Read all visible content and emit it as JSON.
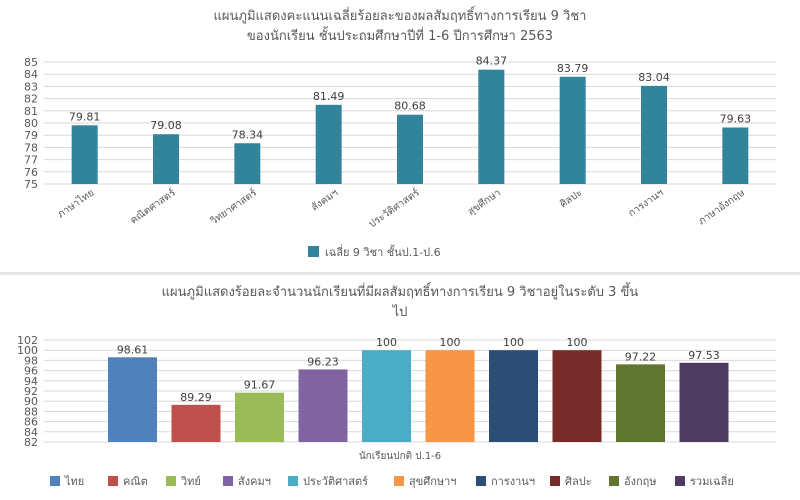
{
  "chart_data": [
    {
      "type": "bar",
      "title_line1": "แผนภูมิแสดงคะแนนเฉลี่ยร้อยละของผลสัมฤทธิ์ทางการเรียน 9 วิชา",
      "title_line2": "ของนักเรียน ชั้นประถมศึกษาปีที่ 1-6 ปีการศึกษา 2563",
      "categories": [
        "ภาษาไทย",
        "คณิตศาสตร์",
        "วิทยาศาสตร์",
        "สังคมฯ",
        "ประวัติศาสตร์",
        "สุขศึกษา",
        "ศิลปะ",
        "การงานฯ",
        "ภาษาอังกฤษ"
      ],
      "values": [
        79.81,
        79.08,
        78.34,
        81.49,
        80.68,
        84.37,
        83.79,
        83.04,
        79.63
      ],
      "series_name": "เฉลี่ย 9 วิชา ชั้นป.1-ป.6",
      "color": "#31849b",
      "ylim": [
        75,
        85
      ],
      "yticks": [
        75,
        76,
        77,
        78,
        79,
        80,
        81,
        82,
        83,
        84,
        85
      ],
      "grid": true,
      "legend": "bottom"
    },
    {
      "type": "bar",
      "title_line1": "แผนภูมิแสดงร้อยละจำนวนนักเรียนที่มีผลสัมฤทธิ์ทางการเรียน 9 วิชาอยู่ในระดับ 3 ขึ้น",
      "title_line2": "ไป",
      "xlabel": "นักเรียนปกติ ป.1-6",
      "series": [
        {
          "name": "ไทย",
          "value": 98.61,
          "color": "#4f81bd"
        },
        {
          "name": "คณิต",
          "value": 89.29,
          "color": "#c0504d"
        },
        {
          "name": "วิทย์",
          "value": 91.67,
          "color": "#9bbb59"
        },
        {
          "name": "สังคมฯ",
          "value": 96.23,
          "color": "#8064a2"
        },
        {
          "name": "ประวัติศาสตร์",
          "value": 100,
          "color": "#4bacc6"
        },
        {
          "name": "สุขศึกษาฯ",
          "value": 100,
          "color": "#f79646"
        },
        {
          "name": "การงานฯ",
          "value": 100,
          "color": "#2c4d75"
        },
        {
          "name": "ศิลปะ",
          "value": 100,
          "color": "#772c2a"
        },
        {
          "name": "อังกฤษ",
          "value": 97.22,
          "color": "#5f7530"
        },
        {
          "name": "รวมเฉลี่ย",
          "value": 97.53,
          "color": "#4d3b62"
        }
      ],
      "ylim": [
        82,
        102
      ],
      "yticks": [
        82,
        84,
        86,
        88,
        90,
        92,
        94,
        96,
        98,
        100,
        102
      ],
      "grid": true,
      "legend": "bottom"
    }
  ]
}
